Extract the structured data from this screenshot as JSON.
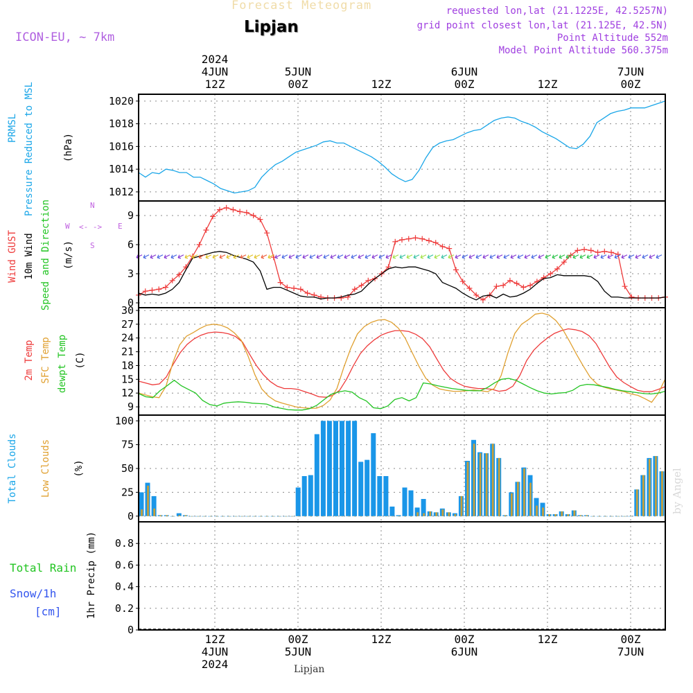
{
  "header": {
    "title": "Forecast Meteogram",
    "station": "Lipjan",
    "model": "ICON-EU, ~ 7km",
    "requested": "requested lon,lat (21.1225E, 42.5257N)",
    "gridpoint": "grid point closest lon,lat (21.125E, 42.5N)",
    "point_alt": "Point Altitude 552m",
    "model_alt": "Model Point Altitude 560.375m"
  },
  "footer": {
    "station": "Lipjan",
    "signature": "by Angel"
  },
  "colors": {
    "pressure": "#1aa6e8",
    "gust": "#ee3a3a",
    "wind": "#000000",
    "temp2m": "#ee3a3a",
    "sfctemp": "#e0a030",
    "dewpt": "#22c422",
    "total_clouds": "#1a96e8",
    "low_clouds": "#c8a038",
    "label_cyan": "#1aa6e8",
    "label_red": "#ee3a3a",
    "label_green": "#22c422",
    "label_orange": "#e0a030",
    "label_blue": "#3355ee",
    "compass": "#c060e0"
  },
  "chart_data": {
    "type": "meteogram",
    "time_axis": {
      "top_ticks": [
        {
          "h": 12,
          "line1": "2024",
          "line2": "4JUN",
          "line3": "12Z"
        },
        {
          "h": 24,
          "line1": "",
          "line2": "5JUN",
          "line3": "00Z"
        },
        {
          "h": 36,
          "line1": "",
          "line2": "",
          "line3": "12Z"
        },
        {
          "h": 48,
          "line1": "",
          "line2": "6JUN",
          "line3": "00Z"
        },
        {
          "h": 60,
          "line1": "",
          "line2": "",
          "line3": "12Z"
        },
        {
          "h": 72,
          "line1": "",
          "line2": "7JUN",
          "line3": "00Z"
        }
      ],
      "bottom_ticks": [
        {
          "h": 12,
          "line1": "12Z",
          "line2": "4JUN",
          "line3": "2024"
        },
        {
          "h": 24,
          "line1": "00Z",
          "line2": "5JUN",
          "line3": ""
        },
        {
          "h": 36,
          "line1": "12Z",
          "line2": "",
          "line3": ""
        },
        {
          "h": 48,
          "line1": "00Z",
          "line2": "6JUN",
          "line3": ""
        },
        {
          "h": 60,
          "line1": "12Z",
          "line2": "",
          "line3": ""
        },
        {
          "h": 72,
          "line1": "00Z",
          "line2": "7JUN",
          "line3": ""
        }
      ],
      "start_hour": 1,
      "end_hour": 77
    },
    "panels": [
      {
        "id": "pressure",
        "ylabel": [
          "PRMSL",
          "Pressure Reduced to MSL",
          "(hPa)"
        ],
        "yticks": [
          1012,
          1014,
          1016,
          1018,
          1020
        ],
        "ylim": [
          1011.2,
          1020.6
        ],
        "series": [
          {
            "name": "PRMSL",
            "values": [
              1013.7,
              1013.3,
              1013.7,
              1013.6,
              1014,
              1013.9,
              1013.7,
              1013.7,
              1013.3,
              1013.3,
              1013,
              1012.7,
              1012.3,
              1012.1,
              1011.9,
              1012,
              1012.1,
              1012.4,
              1013.3,
              1013.9,
              1014.4,
              1014.7,
              1015.1,
              1015.5,
              1015.7,
              1015.9,
              1016.1,
              1016.4,
              1016.5,
              1016.3,
              1016.3,
              1016,
              1015.7,
              1015.4,
              1015.1,
              1014.7,
              1014.2,
              1013.6,
              1013.2,
              1012.9,
              1013.1,
              1013.9,
              1015.0,
              1015.9,
              1016.3,
              1016.5,
              1016.6,
              1016.9,
              1017.2,
              1017.4,
              1017.5,
              1017.9,
              1018.3,
              1018.5,
              1018.6,
              1018.5,
              1018.2,
              1018.0,
              1017.7,
              1017.3,
              1017.0,
              1016.7,
              1016.3,
              1015.9,
              1015.8,
              1016.2,
              1016.9,
              1018.1,
              1018.5,
              1018.9,
              1019.1,
              1019.2,
              1019.4,
              1019.4,
              1019.4,
              1019.6,
              1019.8,
              1020.0
            ]
          }
        ]
      },
      {
        "id": "wind",
        "ylabel": [
          "Wind GUST",
          "10m Wind",
          "Speed and Direction",
          "(m/s)"
        ],
        "yticks": [
          0,
          3,
          6,
          9
        ],
        "ylim": [
          -0.5,
          10.5
        ],
        "compass": {
          "n": "N",
          "s": "S",
          "e": "E",
          "w": "W",
          "arrow": "<- ->"
        },
        "series": [
          {
            "name": "Wind GUST",
            "values": [
              0.8,
              1.2,
              1.3,
              1.4,
              1.6,
              2.3,
              2.9,
              3.7,
              4.8,
              6,
              7.5,
              8.9,
              9.6,
              9.8,
              9.6,
              9.4,
              9.3,
              9.0,
              8.6,
              7.2,
              4.7,
              2.1,
              1.6,
              1.5,
              1.4,
              1.0,
              0.8,
              0.6,
              0.5,
              0.5,
              0.5,
              0.6,
              1.4,
              1.8,
              2.3,
              2.5,
              3.0,
              3.7,
              6.3,
              6.5,
              6.6,
              6.7,
              6.6,
              6.4,
              6.2,
              5.8,
              5.6,
              3.4,
              2.2,
              1.5,
              0.8,
              0.3,
              0.8,
              1.7,
              1.8,
              2.3,
              2.0,
              1.6,
              1.8,
              2.2,
              2.6,
              3.0,
              3.5,
              4.2,
              4.9,
              5.4,
              5.5,
              5.4,
              5.2,
              5.3,
              5.2,
              5.0,
              1.7,
              0.6,
              0.5,
              0.5,
              0.5,
              0.5,
              0.6
            ]
          },
          {
            "name": "10m Wind",
            "values": [
              1.0,
              0.8,
              0.9,
              0.8,
              1.0,
              1.4,
              2.1,
              3.4,
              4.6,
              4.8,
              5.0,
              5.2,
              5.3,
              5.2,
              4.9,
              4.7,
              4.5,
              4.2,
              3.3,
              1.4,
              1.6,
              1.6,
              1.3,
              1.0,
              0.7,
              0.6,
              0.6,
              0.4,
              0.5,
              0.5,
              0.6,
              0.8,
              0.9,
              1.2,
              1.9,
              2.5,
              3.0,
              3.5,
              3.7,
              3.6,
              3.7,
              3.7,
              3.5,
              3.3,
              3.0,
              2.1,
              1.8,
              1.5,
              1.0,
              0.6,
              0.3,
              0.7,
              0.8,
              0.5,
              0.9,
              0.6,
              0.7,
              1.0,
              1.4,
              2.0,
              2.5,
              2.6,
              2.9,
              2.8,
              2.8,
              2.8,
              2.8,
              2.7,
              2.2,
              1.2,
              0.6,
              0.6,
              0.5,
              0.5,
              0.5,
              0.5,
              0.5,
              0.5,
              0.6
            ]
          }
        ]
      },
      {
        "id": "temp",
        "ylabel": [
          "2m Temp",
          "SFC Temp",
          "dewpt Temp",
          "(C)"
        ],
        "yticks": [
          9,
          12,
          15,
          18,
          21,
          24,
          27,
          30
        ],
        "ylim": [
          7.2,
          30.6
        ],
        "series": [
          {
            "name": "2m Temp",
            "values": [
              14.6,
              14.2,
              13.8,
              14.0,
              15.5,
              18.3,
              20.8,
              22.6,
              23.8,
              24.6,
              25.1,
              25.3,
              25.2,
              24.9,
              24.3,
              23.1,
              20.5,
              18.0,
              16.0,
              14.5,
              13.5,
              13.0,
              13.0,
              12.8,
              12.3,
              11.8,
              11.2,
              11.1,
              11.5,
              12.6,
              15.0,
              18.0,
              20.6,
              22.3,
              23.6,
              24.6,
              25.2,
              25.6,
              25.6,
              25.4,
              24.8,
              23.8,
              22.1,
              19.5,
              17.0,
              15.2,
              14.2,
              13.5,
              13.2,
              13.0,
              13.0,
              12.8,
              12.4,
              12.6,
              13.5,
              15.8,
              19.1,
              21.3,
              22.8,
              24.0,
              25.0,
              25.6,
              26.0,
              25.8,
              25.4,
              24.5,
              22.8,
              20.2,
              17.6,
              15.5,
              14.3,
              13.4,
              12.6,
              12.3,
              12.3,
              12.8,
              13.4
            ]
          },
          {
            "name": "SFC Temp",
            "values": [
              12.0,
              11.6,
              11.2,
              11.0,
              13.5,
              18.6,
              22.5,
              24.4,
              25.2,
              26.1,
              26.8,
              27.0,
              26.8,
              26.2,
              25.1,
              23.5,
              20.1,
              16.0,
              12.9,
              11.3,
              10.3,
              9.8,
              9.4,
              9.0,
              8.8,
              8.7,
              8.7,
              9.3,
              10.5,
              13.0,
              17.6,
              21.7,
              24.9,
              26.5,
              27.4,
              27.9,
              28.0,
              27.4,
              26.1,
              23.9,
              20.8,
              17.8,
              15.2,
              13.7,
              12.9,
              12.6,
              12.4,
              12.4,
              12.5,
              12.7,
              12.5,
              12.3,
              13.0,
              15.8,
              20.8,
              25.0,
              27.0,
              28.0,
              29.2,
              29.4,
              29.0,
              27.8,
              25.9,
              23.3,
              20.5,
              17.9,
              15.5,
              14.0,
              13.3,
              12.9,
              12.6,
              12.3,
              11.8,
              11.5,
              10.8,
              10.0,
              12.0,
              15.1
            ]
          },
          {
            "name": "dewpt Temp",
            "values": [
              11.9,
              11.2,
              11.0,
              12.5,
              13.6,
              14.8,
              13.6,
              12.8,
              12.0,
              10.4,
              9.5,
              9.2,
              9.8,
              10.0,
              10.1,
              10.0,
              9.8,
              9.7,
              9.6,
              9.0,
              8.7,
              8.4,
              8.3,
              8.3,
              8.6,
              9.3,
              10.5,
              11.7,
              12.2,
              12.5,
              12.2,
              11.0,
              10.3,
              8.8,
              8.6,
              9.2,
              10.6,
              11.0,
              10.3,
              11.0,
              14.2,
              14.0,
              13.6,
              13.3,
              13.0,
              12.8,
              12.6,
              12.5,
              12.5,
              13.2,
              14.2,
              15.0,
              15.2,
              14.8,
              14.0,
              13.2,
              12.5,
              12.0,
              11.8,
              12.0,
              12.1,
              12.6,
              13.6,
              13.9,
              13.8,
              13.5,
              13.2,
              12.8,
              12.5,
              12.3,
              12.1,
              11.9,
              11.8,
              12.0,
              12.4
            ]
          }
        ]
      },
      {
        "id": "clouds",
        "ylabel": [
          "Total Clouds",
          "Low Clouds",
          "(%)"
        ],
        "yticks": [
          0,
          25,
          50,
          75,
          100
        ],
        "ylim": [
          -6,
          106
        ],
        "bars": {
          "total": [
            25,
            35,
            21,
            1,
            1,
            0,
            3,
            1,
            0,
            0,
            0,
            0,
            0,
            0,
            0,
            0,
            0,
            0,
            0,
            0,
            0,
            0,
            0,
            0,
            0,
            30,
            42,
            43,
            86,
            100,
            100,
            100,
            100,
            100,
            100,
            57,
            59,
            87,
            42,
            42,
            10,
            1,
            30,
            27,
            9,
            18,
            5,
            4,
            8,
            4,
            3,
            21,
            58,
            80,
            67,
            66,
            76,
            61,
            1,
            25,
            36,
            51,
            43,
            19,
            14,
            2,
            2,
            5,
            2,
            6,
            1,
            1,
            0,
            0,
            0,
            0,
            0,
            0,
            0,
            28,
            43,
            61,
            63,
            47
          ],
          "low": [
            7,
            32,
            8,
            1,
            1,
            0,
            1,
            1,
            0,
            0,
            0,
            0,
            0,
            0,
            0,
            0,
            0,
            0,
            0,
            0,
            0,
            0,
            0,
            0,
            0,
            0,
            0,
            0,
            0,
            0,
            0,
            0,
            0,
            0,
            0,
            0,
            0,
            0,
            0,
            0,
            0,
            0,
            0,
            0,
            4,
            3,
            5,
            4,
            7,
            4,
            2,
            21,
            57,
            76,
            66,
            66,
            76,
            61,
            1,
            24,
            36,
            50,
            35,
            11,
            9,
            2,
            2,
            5,
            2,
            6,
            1,
            1,
            0,
            0,
            0,
            0,
            0,
            0,
            0,
            28,
            43,
            60,
            63,
            47
          ]
        }
      },
      {
        "id": "precip",
        "ylabel": [
          "Total  Rain",
          "Snow/1h",
          "[cm]",
          "1hr Precip (mm)"
        ],
        "yticks": [
          0,
          0.2,
          0.4,
          0.6,
          0.8
        ],
        "yticklabels": [
          "0",
          "0.2",
          "0.4",
          "0.6",
          "0.8"
        ],
        "ylim": [
          0,
          1.0
        ],
        "series": [
          {
            "name": "Total Rain",
            "values": [
              0
            ]
          }
        ]
      }
    ]
  }
}
